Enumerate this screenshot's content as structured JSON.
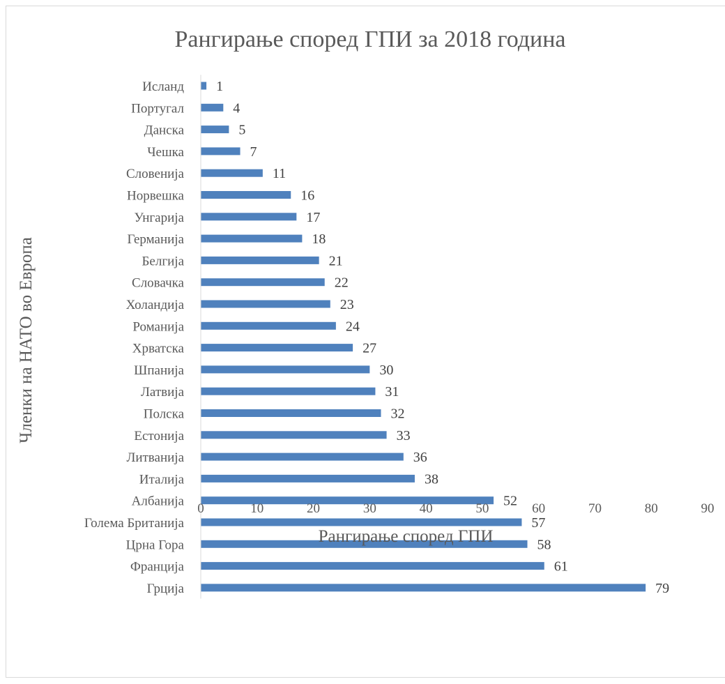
{
  "chart_data": {
    "type": "bar",
    "orientation": "horizontal",
    "title": "Рангирање според ГПИ за 2018 година",
    "xlabel": "Рангирање според ГПИ",
    "ylabel": "Членки на НАТО во Европа",
    "xlim": [
      0,
      90
    ],
    "xticks": [
      "0",
      "10",
      "20",
      "30",
      "40",
      "50",
      "60",
      "70",
      "80",
      "90"
    ],
    "categories": [
      "Исланд",
      "Португал",
      "Данска",
      "Чешка",
      "Словенија",
      "Норвешка",
      "Унгарија",
      "Германија",
      "Белгија",
      "Словачка",
      "Холандија",
      "Романија",
      "Хрватска",
      "Шпанија",
      "Латвија",
      "Полска",
      "Естонија",
      "Литванија",
      "Италија",
      "Албанија",
      "Голема Британија",
      "Црна Гора",
      "Франција",
      "Грција"
    ],
    "values": [
      1,
      4,
      5,
      7,
      11,
      16,
      17,
      18,
      21,
      22,
      23,
      24,
      27,
      30,
      31,
      32,
      33,
      36,
      38,
      52,
      57,
      58,
      61,
      79
    ],
    "value_labels": [
      "1",
      "4",
      "5",
      "7",
      "11",
      "16",
      "17",
      "18",
      "21",
      "22",
      "23",
      "24",
      "27",
      "30",
      "31",
      "32",
      "33",
      "36",
      "38",
      "52",
      "57",
      "58",
      "61",
      "79"
    ],
    "bar_color": "#4f81bd",
    "grid": false,
    "legend": "none"
  }
}
